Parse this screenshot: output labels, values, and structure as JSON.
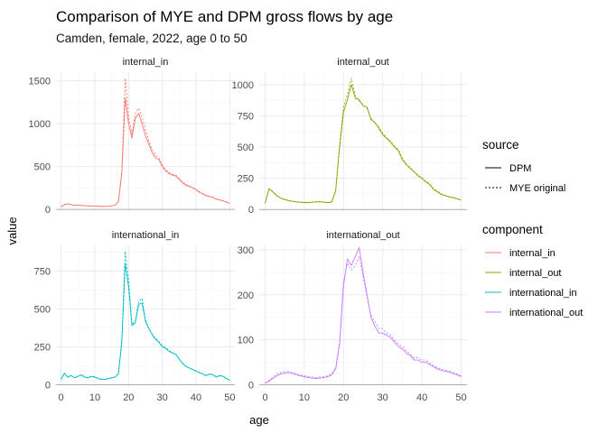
{
  "title": "Comparison of MYE and DPM gross flows by age",
  "subtitle": "Camden, female, 2022, age 0 to 50",
  "chart_data": {
    "type": "line",
    "facets": true,
    "xlabel": "age",
    "ylabel": "value",
    "x": [
      0,
      1,
      2,
      3,
      4,
      5,
      6,
      7,
      8,
      9,
      10,
      11,
      12,
      13,
      14,
      15,
      16,
      17,
      18,
      19,
      20,
      21,
      22,
      23,
      24,
      25,
      26,
      27,
      28,
      29,
      30,
      31,
      32,
      33,
      34,
      35,
      36,
      37,
      38,
      39,
      40,
      41,
      42,
      43,
      44,
      45,
      46,
      47,
      48,
      49,
      50
    ],
    "xlim": [
      -1.5,
      51.5
    ],
    "x_ticks": [
      0,
      10,
      20,
      30,
      40,
      50
    ],
    "grid": true,
    "legend_position": "right",
    "legends": [
      {
        "title": "source",
        "type": "linetype",
        "items": [
          {
            "label": "DPM",
            "dash": "solid"
          },
          {
            "label": "MYE original",
            "dash": "dotted"
          }
        ]
      },
      {
        "title": "component",
        "type": "color",
        "items": [
          {
            "label": "internal_in",
            "color": "#F8766D"
          },
          {
            "label": "internal_out",
            "color": "#7CAE00"
          },
          {
            "label": "international_in",
            "color": "#00BFC4"
          },
          {
            "label": "international_out",
            "color": "#C77CFF"
          }
        ]
      }
    ],
    "panels": [
      {
        "label": "internal_in",
        "color": "#F8766D",
        "ylim": [
          -30,
          1600
        ],
        "y_ticks": [
          0,
          500,
          1000,
          1500
        ],
        "series": [
          {
            "source": "DPM",
            "values": [
              30,
              55,
              65,
              55,
              48,
              52,
              46,
              44,
              40,
              40,
              38,
              37,
              35,
              35,
              38,
              42,
              48,
              90,
              420,
              1300,
              1000,
              830,
              1060,
              1120,
              1000,
              860,
              760,
              660,
              600,
              580,
              500,
              450,
              420,
              400,
              390,
              350,
              310,
              280,
              270,
              250,
              230,
              200,
              180,
              160,
              150,
              140,
              120,
              110,
              100,
              85,
              70
            ]
          },
          {
            "source": "MYE original",
            "values": [
              32,
              58,
              68,
              56,
              50,
              53,
              47,
              45,
              41,
              41,
              39,
              38,
              36,
              36,
              39,
              44,
              50,
              95,
              450,
              1530,
              1080,
              880,
              1120,
              1180,
              1080,
              930,
              800,
              700,
              630,
              600,
              520,
              460,
              430,
              410,
              400,
              360,
              320,
              290,
              275,
              255,
              235,
              205,
              185,
              165,
              152,
              142,
              122,
              112,
              102,
              88,
              72
            ]
          }
        ]
      },
      {
        "label": "internal_out",
        "color": "#7CAE00",
        "ylim": [
          -20,
          1100
        ],
        "y_ticks": [
          0,
          250,
          500,
          750,
          1000
        ],
        "series": [
          {
            "source": "DPM",
            "values": [
              50,
              165,
              140,
              110,
              90,
              80,
              70,
              65,
              60,
              58,
              55,
              55,
              58,
              60,
              62,
              58,
              55,
              60,
              150,
              500,
              780,
              880,
              1000,
              890,
              880,
              830,
              820,
              720,
              700,
              650,
              600,
              570,
              540,
              500,
              470,
              400,
              360,
              330,
              300,
              270,
              250,
              220,
              200,
              160,
              140,
              120,
              110,
              100,
              95,
              85,
              75
            ]
          },
          {
            "source": "MYE original",
            "values": [
              52,
              168,
              142,
              112,
              92,
              82,
              72,
              67,
              62,
              60,
              57,
              57,
              60,
              62,
              64,
              60,
              57,
              62,
              155,
              520,
              820,
              920,
              1050,
              910,
              870,
              840,
              810,
              730,
              690,
              660,
              610,
              575,
              545,
              505,
              480,
              410,
              365,
              335,
              305,
              275,
              255,
              225,
              205,
              165,
              145,
              125,
              112,
              102,
              97,
              87,
              77
            ]
          }
        ]
      },
      {
        "label": "international_in",
        "color": "#00BFC4",
        "ylim": [
          -15,
          920
        ],
        "y_ticks": [
          0,
          250,
          500,
          750
        ],
        "series": [
          {
            "source": "DPM",
            "values": [
              35,
              75,
              50,
              60,
              45,
              55,
              65,
              50,
              45,
              55,
              50,
              40,
              35,
              35,
              40,
              45,
              50,
              70,
              280,
              800,
              650,
              390,
              410,
              530,
              540,
              420,
              370,
              330,
              300,
              280,
              250,
              240,
              220,
              210,
              200,
              170,
              140,
              120,
              110,
              100,
              90,
              80,
              70,
              60,
              70,
              65,
              50,
              60,
              55,
              40,
              30
            ]
          },
          {
            "source": "MYE original",
            "values": [
              38,
              78,
              52,
              62,
              47,
              57,
              66,
              52,
              47,
              57,
              52,
              42,
              37,
              37,
              42,
              47,
              52,
              72,
              300,
              880,
              690,
              400,
              420,
              550,
              570,
              430,
              375,
              335,
              305,
              285,
              255,
              245,
              225,
              212,
              202,
              172,
              142,
              122,
              112,
              102,
              92,
              82,
              72,
              62,
              72,
              67,
              52,
              62,
              57,
              42,
              32
            ]
          }
        ]
      },
      {
        "label": "international_out",
        "color": "#C77CFF",
        "ylim": [
          -5,
          310
        ],
        "y_ticks": [
          0,
          100,
          200,
          300
        ],
        "series": [
          {
            "source": "DPM",
            "values": [
              3,
              8,
              14,
              20,
              24,
              26,
              27,
              25,
              22,
              20,
              18,
              16,
              15,
              14,
              15,
              16,
              18,
              22,
              35,
              90,
              220,
              280,
              265,
              285,
              305,
              250,
              200,
              150,
              130,
              115,
              115,
              110,
              105,
              95,
              85,
              80,
              70,
              65,
              55,
              55,
              50,
              50,
              45,
              40,
              35,
              32,
              30,
              28,
              25,
              22,
              18
            ]
          },
          {
            "source": "MYE original",
            "values": [
              4,
              10,
              17,
              24,
              27,
              29,
              30,
              28,
              24,
              22,
              20,
              18,
              17,
              16,
              17,
              18,
              20,
              25,
              38,
              95,
              230,
              270,
              255,
              265,
              285,
              240,
              195,
              155,
              140,
              125,
              125,
              115,
              110,
              100,
              90,
              85,
              75,
              68,
              60,
              60,
              55,
              55,
              48,
              42,
              38,
              35,
              32,
              30,
              27,
              24,
              20
            ]
          }
        ]
      }
    ]
  }
}
